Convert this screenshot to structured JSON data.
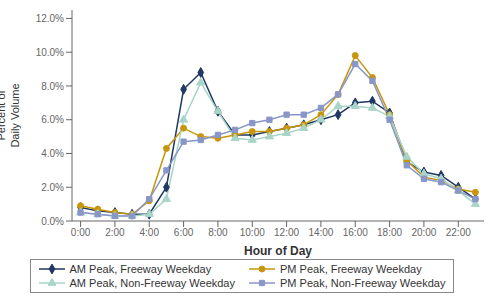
{
  "chart_data": {
    "type": "line",
    "x_label": "Hour of Day",
    "y_label": "Percent of\nDaily Volume",
    "x": [
      0,
      1,
      2,
      3,
      4,
      5,
      6,
      7,
      8,
      9,
      10,
      11,
      12,
      13,
      14,
      15,
      16,
      17,
      18,
      19,
      20,
      21,
      22,
      23
    ],
    "series": [
      {
        "name": "AM Peak, Freeway Weekday",
        "color": "#1f3864",
        "marker": "diamond",
        "values": [
          0.008,
          0.006,
          0.005,
          0.004,
          0.004,
          0.02,
          0.078,
          0.088,
          0.065,
          0.051,
          0.051,
          0.053,
          0.055,
          0.057,
          0.06,
          0.063,
          0.07,
          0.071,
          0.064,
          0.035,
          0.029,
          0.027,
          0.02,
          0.013
        ]
      },
      {
        "name": "PM Peak, Freeway Weekday",
        "color": "#c8960c",
        "marker": "circle",
        "values": [
          0.009,
          0.007,
          0.005,
          0.004,
          0.012,
          0.043,
          0.055,
          0.05,
          0.049,
          0.051,
          0.053,
          0.053,
          0.055,
          0.057,
          0.063,
          0.075,
          0.098,
          0.085,
          0.063,
          0.036,
          0.026,
          0.024,
          0.019,
          0.017
        ]
      },
      {
        "name": "AM Peak, Non-Freeway Weekday",
        "color": "#a8d5c8",
        "marker": "triangle",
        "values": [
          0.005,
          0.004,
          0.003,
          0.003,
          0.004,
          0.013,
          0.06,
          0.082,
          0.065,
          0.049,
          0.048,
          0.05,
          0.052,
          0.055,
          0.06,
          0.068,
          0.068,
          0.067,
          0.062,
          0.038,
          0.028,
          0.025,
          0.018,
          0.01
        ]
      },
      {
        "name": "PM Peak, Non-Freeway Weekday",
        "color": "#8896c8",
        "marker": "square",
        "values": [
          0.005,
          0.004,
          0.003,
          0.003,
          0.013,
          0.03,
          0.047,
          0.048,
          0.051,
          0.054,
          0.058,
          0.06,
          0.063,
          0.063,
          0.067,
          0.075,
          0.093,
          0.083,
          0.06,
          0.033,
          0.025,
          0.023,
          0.018,
          0.013
        ]
      }
    ],
    "xlim": [
      -0.5,
      23.5
    ],
    "xticks": [
      {
        "value": 0,
        "label": "0:00"
      },
      {
        "value": 2,
        "label": "2:00"
      },
      {
        "value": 4,
        "label": "4:00"
      },
      {
        "value": 6,
        "label": "6:00"
      },
      {
        "value": 8,
        "label": "8:00"
      },
      {
        "value": 10,
        "label": "10:00"
      },
      {
        "value": 12,
        "label": "12:00"
      },
      {
        "value": 14,
        "label": "14:00"
      },
      {
        "value": 16,
        "label": "16:00"
      },
      {
        "value": 18,
        "label": "18:00"
      },
      {
        "value": 20,
        "label": "20:00"
      },
      {
        "value": 22,
        "label": "22:00"
      }
    ],
    "ylim": [
      0.0,
      0.125
    ],
    "yticks": [
      {
        "value": 0.0,
        "label": "0.0%"
      },
      {
        "value": 0.02,
        "label": "2.0%"
      },
      {
        "value": 0.04,
        "label": "4.0%"
      },
      {
        "value": 0.06,
        "label": "6.0%"
      },
      {
        "value": 0.08,
        "label": "8.0%"
      },
      {
        "value": 0.1,
        "label": "10.0%"
      },
      {
        "value": 0.12,
        "label": "12.0%"
      }
    ],
    "grid": false,
    "legend": "bottom"
  }
}
